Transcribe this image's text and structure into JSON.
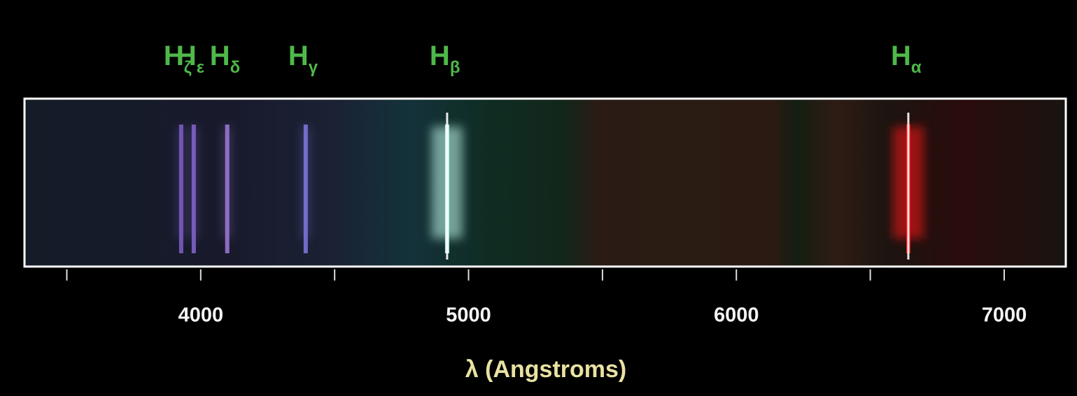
{
  "chart_data": {
    "type": "spectrum",
    "xlabel": "λ (Angstroms)",
    "xlim": [
      3342,
      7230
    ],
    "xticks": [
      4000,
      5000,
      6000,
      7000
    ],
    "minor_xticks": [
      3500,
      4500,
      5500,
      6500
    ],
    "lines": [
      {
        "label": "H",
        "subscript": "ζ",
        "wavelength": 3927,
        "color": "#7a5cc0"
      },
      {
        "label": "H",
        "subscript": "ε",
        "wavelength": 3974,
        "color": "#7e62c8"
      },
      {
        "label": "H",
        "subscript": "δ",
        "wavelength": 4099,
        "color": "#9a74d0"
      },
      {
        "label": "H",
        "subscript": "γ",
        "wavelength": 4392,
        "color": "#7a74d8"
      },
      {
        "label": "H",
        "subscript": "β",
        "wavelength": 4920,
        "color": "#c8fff4"
      },
      {
        "label": "H",
        "subscript": "α",
        "wavelength": 6642,
        "color": "#ff1818"
      }
    ]
  }
}
